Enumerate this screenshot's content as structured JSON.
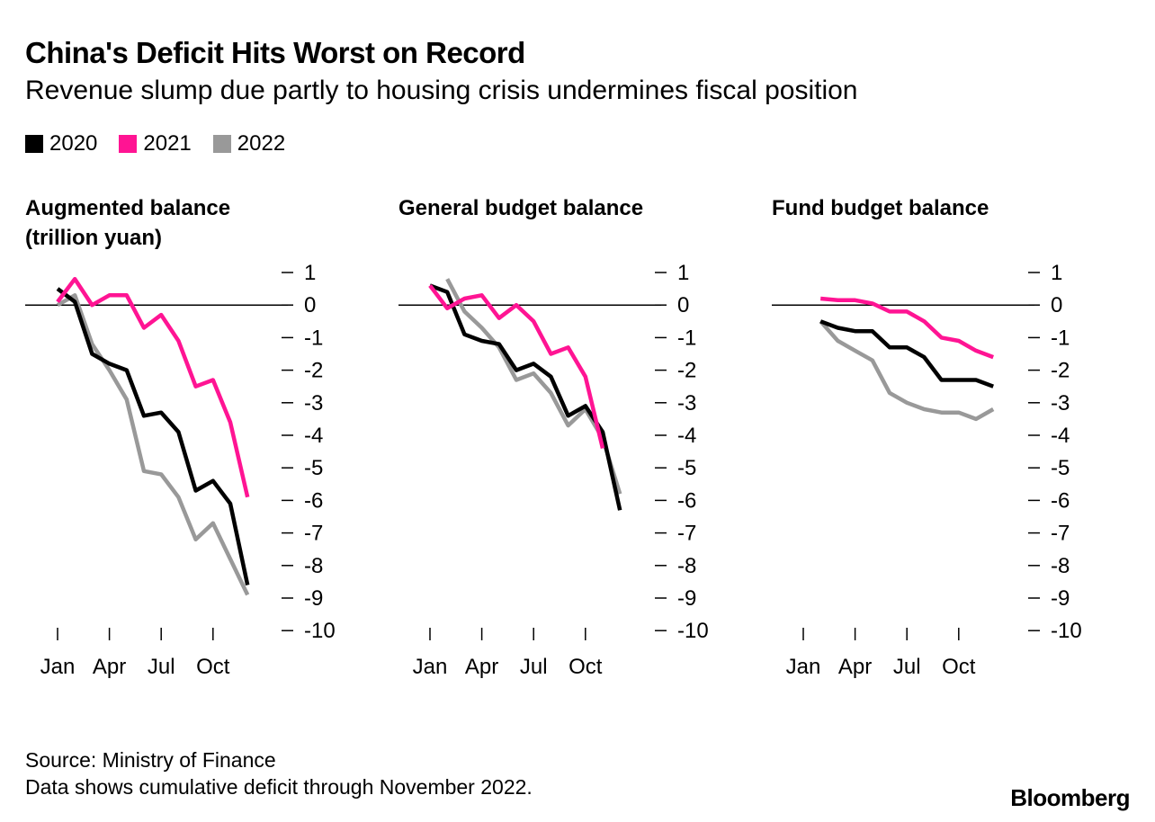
{
  "title": "China's Deficit Hits Worst on Record",
  "subtitle": "Revenue slump due partly to housing crisis undermines fiscal position",
  "legend": [
    {
      "label": "2020",
      "color": "#000000"
    },
    {
      "label": "2021",
      "color": "#ff1493"
    },
    {
      "label": "2022",
      "color": "#999999"
    }
  ],
  "source": "Source: Ministry of Finance",
  "note": "Data shows cumulative deficit through November 2022.",
  "brand": "Bloomberg",
  "chart_data": [
    {
      "type": "line",
      "title_lines": [
        "Augmented balance",
        "(trillion yuan)"
      ],
      "x_ticks": [
        "Jan",
        "Apr",
        "Jul",
        "Oct"
      ],
      "y_ticks": [
        "1",
        "0",
        "-1",
        "-2",
        "-3",
        "-4",
        "-5",
        "-6",
        "-7",
        "-8",
        "-9",
        "-10"
      ],
      "ylim": [
        -10,
        1
      ],
      "series": [
        {
          "name": "2020",
          "color": "#000000",
          "start_month": 1,
          "values": [
            0.5,
            0.1,
            -1.5,
            -1.8,
            -2.0,
            -3.4,
            -3.3,
            -3.9,
            -5.7,
            -5.4,
            -6.1,
            -8.6
          ]
        },
        {
          "name": "2021",
          "color": "#ff1493",
          "start_month": 1,
          "values": [
            0.1,
            0.8,
            0.0,
            0.3,
            0.3,
            -0.7,
            -0.3,
            -1.1,
            -2.5,
            -2.3,
            -3.6,
            -5.9
          ]
        },
        {
          "name": "2022",
          "color": "#999999",
          "start_month": 1,
          "values": [
            0.0,
            0.3,
            -1.2,
            -2.0,
            -2.9,
            -5.1,
            -5.2,
            -5.9,
            -7.2,
            -6.7,
            -7.8,
            -8.9
          ]
        }
      ]
    },
    {
      "type": "line",
      "title_lines": [
        "General budget balance"
      ],
      "x_ticks": [
        "Jan",
        "Apr",
        "Jul",
        "Oct"
      ],
      "y_ticks": [
        "1",
        "0",
        "-1",
        "-2",
        "-3",
        "-4",
        "-5",
        "-6",
        "-7",
        "-8",
        "-9",
        "-10"
      ],
      "ylim": [
        -10,
        1
      ],
      "series": [
        {
          "name": "2020",
          "color": "#000000",
          "start_month": 1,
          "values": [
            0.6,
            0.4,
            -0.9,
            -1.1,
            -1.2,
            -2.0,
            -1.8,
            -2.2,
            -3.4,
            -3.1,
            -3.9,
            -6.3
          ]
        },
        {
          "name": "2021",
          "color": "#ff1493",
          "start_month": 1,
          "values": [
            0.6,
            -0.1,
            0.2,
            0.3,
            -0.4,
            0.0,
            -0.5,
            -1.5,
            -1.3,
            -2.2,
            -4.4
          ]
        },
        {
          "name": "2022",
          "color": "#999999",
          "start_month": 2,
          "values": [
            0.8,
            -0.2,
            -0.7,
            -1.3,
            -2.3,
            -2.1,
            -2.7,
            -3.7,
            -3.2,
            -4.1,
            -5.8
          ]
        }
      ]
    },
    {
      "type": "line",
      "title_lines": [
        "Fund budget balance"
      ],
      "x_ticks": [
        "Jan",
        "Apr",
        "Jul",
        "Oct"
      ],
      "y_ticks": [
        "1",
        "0",
        "-1",
        "-2",
        "-3",
        "-4",
        "-5",
        "-6",
        "-7",
        "-8",
        "-9",
        "-10"
      ],
      "ylim": [
        -10,
        1
      ],
      "series": [
        {
          "name": "2020",
          "color": "#000000",
          "start_month": 2,
          "values": [
            -0.5,
            -0.7,
            -0.8,
            -0.8,
            -1.3,
            -1.3,
            -1.6,
            -2.3,
            -2.3,
            -2.3,
            -2.5
          ]
        },
        {
          "name": "2021",
          "color": "#ff1493",
          "start_month": 2,
          "values": [
            0.2,
            0.15,
            0.15,
            0.05,
            -0.2,
            -0.2,
            -0.5,
            -1.0,
            -1.1,
            -1.4,
            -1.6
          ]
        },
        {
          "name": "2022",
          "color": "#999999",
          "start_month": 2,
          "values": [
            -0.5,
            -1.1,
            -1.4,
            -1.7,
            -2.7,
            -3.0,
            -3.2,
            -3.3,
            -3.3,
            -3.5,
            -3.2
          ]
        }
      ]
    }
  ]
}
